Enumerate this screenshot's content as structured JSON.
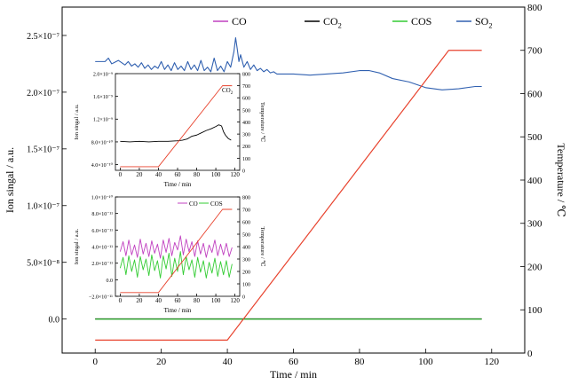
{
  "chart_data": [
    {
      "id": "main",
      "type": "line",
      "xlabel": "Time / min",
      "ylabel": "Ion singal / a.u.",
      "y2label": "Temperature / ℃",
      "xlim": [
        -10,
        130
      ],
      "ylim": [
        -3e-08,
        2.75e-07
      ],
      "y2lim": [
        0,
        800
      ],
      "xticks": [
        "0",
        "20",
        "40",
        "60",
        "80",
        "100",
        "120"
      ],
      "yticks": [
        "0.0",
        "5.0×10⁻⁸",
        "1.0×10⁻⁷",
        "1.5×10⁻⁷",
        "2.0×10⁻⁷",
        "2.5×10⁻⁷"
      ],
      "y2ticks": [
        "0",
        "100",
        "200",
        "300",
        "400",
        "500",
        "600",
        "700",
        "800"
      ],
      "legend_position": "top-right",
      "series": [
        {
          "name": "CO",
          "color": "#c040c0",
          "x": [
            0,
            117
          ],
          "y": [
            0.0,
            0.0
          ]
        },
        {
          "name": "CO2",
          "color": "#000000",
          "x": [
            0,
            117
          ],
          "y": [
            1.5e-10,
            1.5e-10
          ]
        },
        {
          "name": "COS",
          "color": "#33cc33",
          "x": [
            0,
            117
          ],
          "y": [
            -1e-10,
            -1e-10
          ]
        },
        {
          "name": "SO2",
          "color": "#3060b0",
          "x": [
            0,
            3,
            4,
            5,
            7,
            9,
            10,
            11,
            12,
            13,
            14,
            15,
            16,
            17,
            18,
            19,
            20,
            21,
            22,
            23,
            24,
            25,
            26,
            27,
            28,
            29,
            30,
            31,
            32,
            33,
            34,
            35,
            36,
            37,
            38,
            39,
            40,
            41,
            42,
            42.5,
            43,
            43.5,
            44,
            45,
            46,
            47,
            48,
            49,
            50,
            51,
            52,
            53,
            54,
            55,
            57,
            60,
            65,
            70,
            75,
            80,
            83,
            86,
            90,
            95,
            100,
            105,
            110,
            115,
            117
          ],
          "y": [
            2.27e-07,
            2.27e-07,
            2.3e-07,
            2.25e-07,
            2.28e-07,
            2.24e-07,
            2.27e-07,
            2.23e-07,
            2.25e-07,
            2.22e-07,
            2.26e-07,
            2.21e-07,
            2.24e-07,
            2.2e-07,
            2.23e-07,
            2.21e-07,
            2.27e-07,
            2.2e-07,
            2.24e-07,
            2.19e-07,
            2.26e-07,
            2.2e-07,
            2.23e-07,
            2.19e-07,
            2.27e-07,
            2.2e-07,
            2.24e-07,
            2.19e-07,
            2.28e-07,
            2.19e-07,
            2.22e-07,
            2.18e-07,
            2.3e-07,
            2.19e-07,
            2.23e-07,
            2.18e-07,
            2.27e-07,
            2.22e-07,
            2.36e-07,
            2.48e-07,
            2.38e-07,
            2.27e-07,
            2.33e-07,
            2.22e-07,
            2.27e-07,
            2.2e-07,
            2.24e-07,
            2.19e-07,
            2.21e-07,
            2.18e-07,
            2.2e-07,
            2.17e-07,
            2.18e-07,
            2.16e-07,
            2.16e-07,
            2.16e-07,
            2.15e-07,
            2.16e-07,
            2.17e-07,
            2.19e-07,
            2.19e-07,
            2.17e-07,
            2.12e-07,
            2.09e-07,
            2.04e-07,
            2.02e-07,
            2.03e-07,
            2.05e-07,
            2.05e-07
          ]
        },
        {
          "name": "Temperature",
          "axis": "right",
          "color": "#e8432e",
          "x": [
            0,
            40,
            107,
            117
          ],
          "y": [
            30,
            30,
            700,
            700
          ]
        }
      ]
    },
    {
      "id": "inset_co2",
      "type": "line",
      "xlabel": "Time / min",
      "ylabel": "Ion singal / a.u.",
      "y2label": "Temperature / ℃",
      "xlim": [
        -5,
        125
      ],
      "ylim": [
        3e-10,
        2e-09
      ],
      "y2lim": [
        0,
        800
      ],
      "xticks": [
        "0",
        "20",
        "40",
        "60",
        "80",
        "100",
        "120"
      ],
      "yticks": [
        "4.0×10⁻¹⁰",
        "8.0×10⁻¹⁰",
        "1.2×10⁻⁹",
        "1.6×10⁻⁹",
        "2.0×10⁻⁹"
      ],
      "y2ticks": [
        "0",
        "100",
        "200",
        "300",
        "400",
        "500",
        "600",
        "700",
        "800"
      ],
      "legend_position": "top-right",
      "series": [
        {
          "name": "CO2",
          "color": "#000000",
          "x": [
            0,
            10,
            20,
            30,
            40,
            50,
            60,
            65,
            70,
            75,
            80,
            85,
            90,
            95,
            100,
            103,
            106,
            108,
            110,
            113,
            116
          ],
          "y": [
            8.1e-10,
            8e-10,
            8.1e-10,
            8e-10,
            8.1e-10,
            8.1e-10,
            8.2e-10,
            8.3e-10,
            8.5e-10,
            9e-10,
            9.2e-10,
            9.6e-10,
            1e-09,
            1.03e-09,
            1.07e-09,
            1.1e-09,
            1.08e-09,
            9.8e-10,
            9.2e-10,
            8.6e-10,
            8.3e-10
          ]
        },
        {
          "name": "Temperature",
          "axis": "right",
          "color": "#e8432e",
          "x": [
            0,
            40,
            107,
            117
          ],
          "y": [
            30,
            30,
            700,
            700
          ]
        }
      ]
    },
    {
      "id": "inset_co_cos",
      "type": "line",
      "xlabel": "Time / min",
      "ylabel": "Ion singal / a.u.",
      "y2label": "Temperature / ℃",
      "xlim": [
        -5,
        125
      ],
      "ylim": [
        -2e-11,
        1e-10
      ],
      "y2lim": [
        0,
        800
      ],
      "xticks": [
        "0",
        "20",
        "40",
        "60",
        "80",
        "100",
        "120"
      ],
      "yticks": [
        "−2.0×10⁻¹¹",
        "0.0",
        "2.0×10⁻¹¹",
        "4.0×10⁻¹¹",
        "6.0×10⁻¹¹",
        "8.0×10⁻¹¹",
        "1.0×10⁻¹⁰"
      ],
      "y2ticks": [
        "0",
        "100",
        "200",
        "300",
        "400",
        "500",
        "600",
        "700",
        "800"
      ],
      "legend_position": "top-right",
      "series": [
        {
          "name": "CO",
          "color": "#c040c0",
          "x": [
            0,
            3,
            6,
            9,
            12,
            15,
            18,
            21,
            24,
            27,
            30,
            33,
            36,
            39,
            42,
            45,
            48,
            51,
            54,
            57,
            60,
            63,
            66,
            69,
            72,
            75,
            78,
            81,
            84,
            87,
            90,
            93,
            96,
            99,
            102,
            105,
            108,
            111,
            114,
            117
          ],
          "y": [
            3.4e-11,
            4.6e-11,
            2.9e-11,
            4.8e-11,
            3e-11,
            4.2e-11,
            2.7e-11,
            4.9e-11,
            3.1e-11,
            4.4e-11,
            2.8e-11,
            4.7e-11,
            3.2e-11,
            4.3e-11,
            2.6e-11,
            4.8e-11,
            3.3e-11,
            5e-11,
            2.9e-11,
            4.5e-11,
            3.6e-11,
            5.3e-11,
            3e-11,
            4.9e-11,
            3.4e-11,
            4.6e-11,
            2.8e-11,
            4.7e-11,
            3.1e-11,
            4.4e-11,
            2.7e-11,
            4.2e-11,
            3.3e-11,
            4.8e-11,
            2.9e-11,
            4.3e-11,
            3e-11,
            4.4e-11,
            2.8e-11,
            3.9e-11
          ]
        },
        {
          "name": "COS",
          "color": "#33cc33",
          "x": [
            0,
            3,
            6,
            9,
            12,
            15,
            18,
            21,
            24,
            27,
            30,
            33,
            36,
            39,
            42,
            45,
            48,
            51,
            54,
            57,
            60,
            63,
            66,
            69,
            72,
            75,
            78,
            81,
            84,
            87,
            90,
            93,
            96,
            99,
            102,
            105,
            108,
            111,
            114,
            117
          ],
          "y": [
            1.4e-11,
            2.7e-11,
            6e-12,
            2.9e-11,
            1e-11,
            2.4e-11,
            3e-12,
            2.8e-11,
            1.2e-11,
            2.5e-11,
            5e-12,
            3e-11,
            1.1e-11,
            2.3e-11,
            2e-12,
            2.9e-11,
            1.3e-11,
            3.2e-11,
            4e-12,
            2.6e-11,
            1e-11,
            3.4e-11,
            6e-12,
            2.8e-11,
            1.2e-11,
            2.4e-11,
            3e-12,
            2.7e-11,
            9e-12,
            2.3e-11,
            2e-12,
            2.1e-11,
            8e-12,
            2.6e-11,
            4e-12,
            2.2e-11,
            6e-12,
            2.3e-11,
            3e-12,
            1.9e-11
          ]
        },
        {
          "name": "Temperature",
          "axis": "right",
          "color": "#e8432e",
          "x": [
            0,
            40,
            107,
            117
          ],
          "y": [
            30,
            30,
            700,
            700
          ]
        }
      ]
    }
  ]
}
